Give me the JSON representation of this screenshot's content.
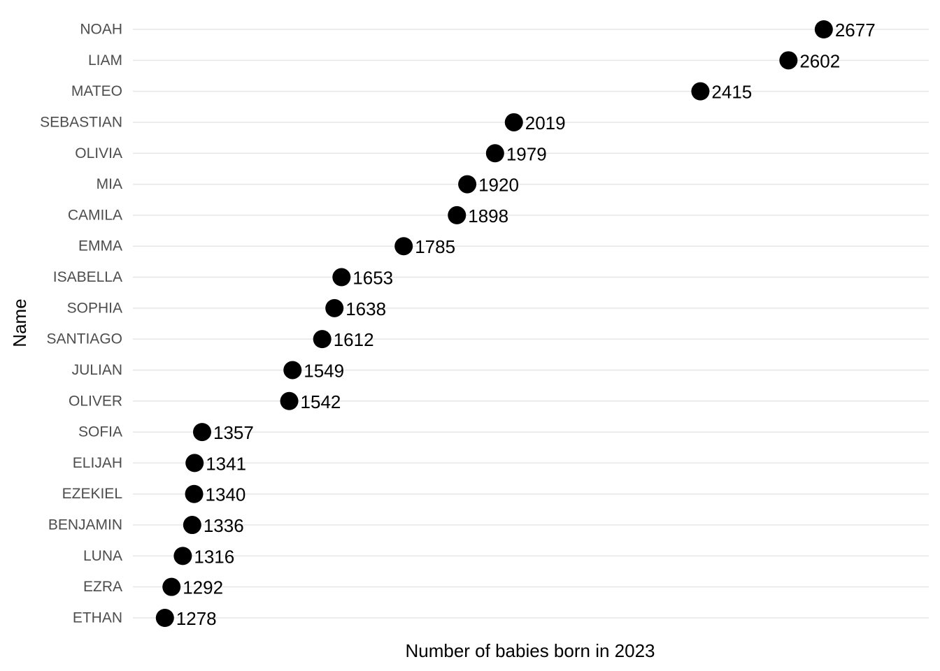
{
  "chart_data": {
    "type": "scatter",
    "title": "",
    "xlabel": "Number of babies born in 2023",
    "ylabel": "Name",
    "categories": [
      "NOAH",
      "LIAM",
      "MATEO",
      "SEBASTIAN",
      "OLIVIA",
      "MIA",
      "CAMILA",
      "EMMA",
      "ISABELLA",
      "SOPHIA",
      "SANTIAGO",
      "JULIAN",
      "OLIVER",
      "SOFIA",
      "ELIJAH",
      "EZEKIEL",
      "BENJAMIN",
      "LUNA",
      "EZRA",
      "ETHAN"
    ],
    "values": [
      2677,
      2602,
      2415,
      2019,
      1979,
      1920,
      1898,
      1785,
      1653,
      1638,
      1612,
      1549,
      1542,
      1357,
      1341,
      1340,
      1336,
      1316,
      1292,
      1278
    ],
    "xlim": [
      1210,
      2900
    ],
    "grid": "horizontal major only",
    "legend": "none",
    "point_color": "#000000",
    "grid_color": "#e6e6e6"
  }
}
